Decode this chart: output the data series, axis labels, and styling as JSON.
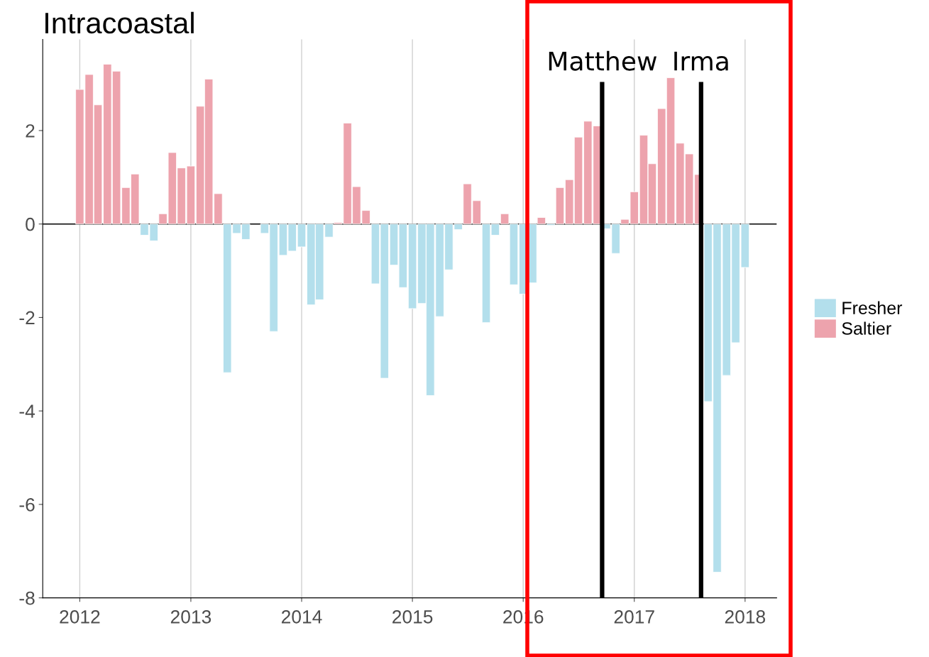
{
  "chart_data": {
    "type": "bar",
    "title": "Intracoastal",
    "x": [
      "2012-01",
      "2012-02",
      "2012-03",
      "2012-04",
      "2012-05",
      "2012-06",
      "2012-07",
      "2012-08",
      "2012-09",
      "2012-10",
      "2012-11",
      "2012-12",
      "2013-01",
      "2013-02",
      "2013-03",
      "2013-04",
      "2013-05",
      "2013-06",
      "2013-07",
      "2013-08",
      "2013-09",
      "2013-10",
      "2013-11",
      "2013-12",
      "2014-01",
      "2014-02",
      "2014-03",
      "2014-04",
      "2014-05",
      "2014-06",
      "2014-07",
      "2014-08",
      "2014-09",
      "2014-10",
      "2014-11",
      "2014-12",
      "2015-01",
      "2015-02",
      "2015-03",
      "2015-04",
      "2015-05",
      "2015-06",
      "2015-07",
      "2015-08",
      "2015-09",
      "2015-10",
      "2015-11",
      "2015-12",
      "2016-01",
      "2016-02",
      "2016-03",
      "2016-04",
      "2016-05",
      "2016-06",
      "2016-07",
      "2016-08",
      "2016-09",
      "2016-10",
      "2016-11",
      "2016-12",
      "2017-01",
      "2017-02",
      "2017-03",
      "2017-04",
      "2017-05",
      "2017-06",
      "2017-07",
      "2017-08",
      "2017-09",
      "2017-10",
      "2017-11",
      "2017-12",
      "2018-01"
    ],
    "series": [
      {
        "name": "Fresher",
        "color": "#b3dfec",
        "values": [
          null,
          null,
          null,
          null,
          null,
          null,
          null,
          -0.24,
          -0.36,
          null,
          null,
          null,
          null,
          null,
          null,
          null,
          -3.18,
          -0.2,
          -0.33,
          null,
          -0.2,
          -2.3,
          -0.67,
          -0.58,
          -0.49,
          -1.73,
          -1.62,
          -0.28,
          null,
          null,
          null,
          null,
          -1.28,
          -3.3,
          -0.88,
          -1.36,
          -1.81,
          -1.7,
          -3.67,
          -1.98,
          -0.98,
          -0.12,
          null,
          null,
          -2.11,
          -0.24,
          null,
          -1.3,
          -1.5,
          -1.26,
          null,
          -0.03,
          null,
          null,
          null,
          null,
          null,
          -0.1,
          -0.63,
          null,
          null,
          null,
          null,
          null,
          null,
          null,
          null,
          null,
          -3.8,
          -7.45,
          -3.24,
          -2.54,
          -0.93
        ]
      },
      {
        "name": "Saltier",
        "color": "#eda3ad",
        "values": [
          2.88,
          3.2,
          2.55,
          3.42,
          3.27,
          0.78,
          1.07,
          null,
          null,
          0.22,
          1.53,
          1.2,
          1.24,
          2.52,
          3.1,
          0.65,
          null,
          null,
          null,
          null,
          null,
          null,
          null,
          null,
          null,
          null,
          null,
          null,
          0.03,
          2.16,
          0.8,
          0.29,
          null,
          null,
          null,
          null,
          null,
          null,
          null,
          null,
          null,
          null,
          0.86,
          0.5,
          null,
          null,
          0.22,
          null,
          null,
          null,
          0.14,
          null,
          0.78,
          0.95,
          1.86,
          2.2,
          2.1,
          null,
          null,
          0.1,
          0.69,
          1.9,
          1.29,
          2.47,
          3.13,
          1.73,
          1.5,
          1.06,
          null,
          null,
          null,
          null,
          null
        ]
      }
    ],
    "xlim": [
      "2011-09-01",
      "2018-04-15"
    ],
    "xticks": [
      "2012",
      "2013",
      "2014",
      "2015",
      "2016",
      "2017",
      "2018"
    ],
    "ylim": [
      -8,
      3.95
    ],
    "yticks": [
      -8,
      -6,
      -4,
      -2,
      0,
      2
    ],
    "ref_lines": [
      {
        "axis": "y",
        "value": 0,
        "color": "#000000"
      },
      {
        "axis": "x",
        "value": "2016-09-17",
        "label": "Matthew",
        "color": "#000000"
      },
      {
        "axis": "x",
        "value": "2017-08-09",
        "label": "Irma",
        "color": "#000000"
      }
    ],
    "grid": "x",
    "legend": "right"
  }
}
